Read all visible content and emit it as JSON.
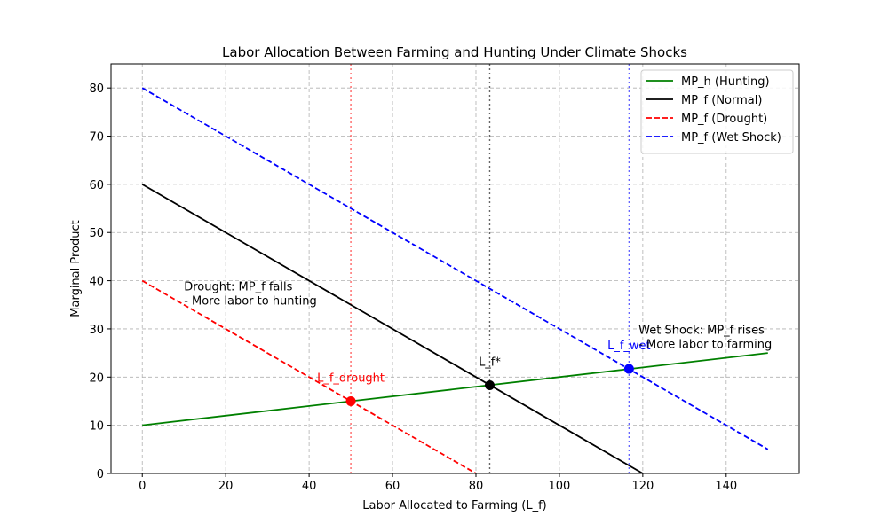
{
  "chart_data": {
    "type": "line",
    "title": "Labor Allocation Between Farming and Hunting Under Climate Shocks",
    "xlabel": "Labor Allocated to Farming (L_f)",
    "ylabel": "Marginal Product",
    "xlim": [
      -7.5,
      157.5
    ],
    "ylim": [
      0,
      85
    ],
    "xticks": [
      0,
      20,
      40,
      60,
      80,
      100,
      120,
      140
    ],
    "yticks": [
      0,
      10,
      20,
      30,
      40,
      50,
      60,
      70,
      80
    ],
    "grid": true,
    "legend_position": "top-right",
    "series": [
      {
        "name": "MP_h (Hunting)",
        "color": "#008000",
        "style": "solid",
        "x": [
          0,
          150
        ],
        "y": [
          10,
          25
        ]
      },
      {
        "name": "MP_f (Normal)",
        "color": "#000000",
        "style": "solid",
        "x": [
          0,
          120
        ],
        "y": [
          60,
          0
        ]
      },
      {
        "name": "MP_f (Drought)",
        "color": "#ff0000",
        "style": "dashed",
        "x": [
          0,
          80
        ],
        "y": [
          40,
          0
        ]
      },
      {
        "name": "MP_f (Wet Shock)",
        "color": "#0000ff",
        "style": "dashed",
        "x": [
          0,
          150
        ],
        "y": [
          80,
          5
        ]
      }
    ],
    "vlines": [
      {
        "x": 50,
        "color": "#ff0000",
        "style": "dotted"
      },
      {
        "x": 83.3,
        "color": "#000000",
        "style": "dotted"
      },
      {
        "x": 116.7,
        "color": "#0000ff",
        "style": "dotted"
      }
    ],
    "points": [
      {
        "label": "L_f_drought",
        "x": 50,
        "y": 15,
        "color": "#ff0000"
      },
      {
        "label": "L_f*",
        "x": 83.3,
        "y": 18.3,
        "color": "#000000"
      },
      {
        "label": "L_f_wet",
        "x": 116.7,
        "y": 21.7,
        "color": "#0000ff"
      }
    ],
    "annotations": [
      {
        "lines": [
          "Drought: MP_f falls",
          "- More labor to hunting"
        ],
        "x": 10,
        "y": 38,
        "color": "#000000"
      },
      {
        "lines": [
          "Wet Shock: MP_f rises",
          "- More labor to farming"
        ],
        "x": 119,
        "y": 29,
        "color": "#000000"
      }
    ]
  }
}
